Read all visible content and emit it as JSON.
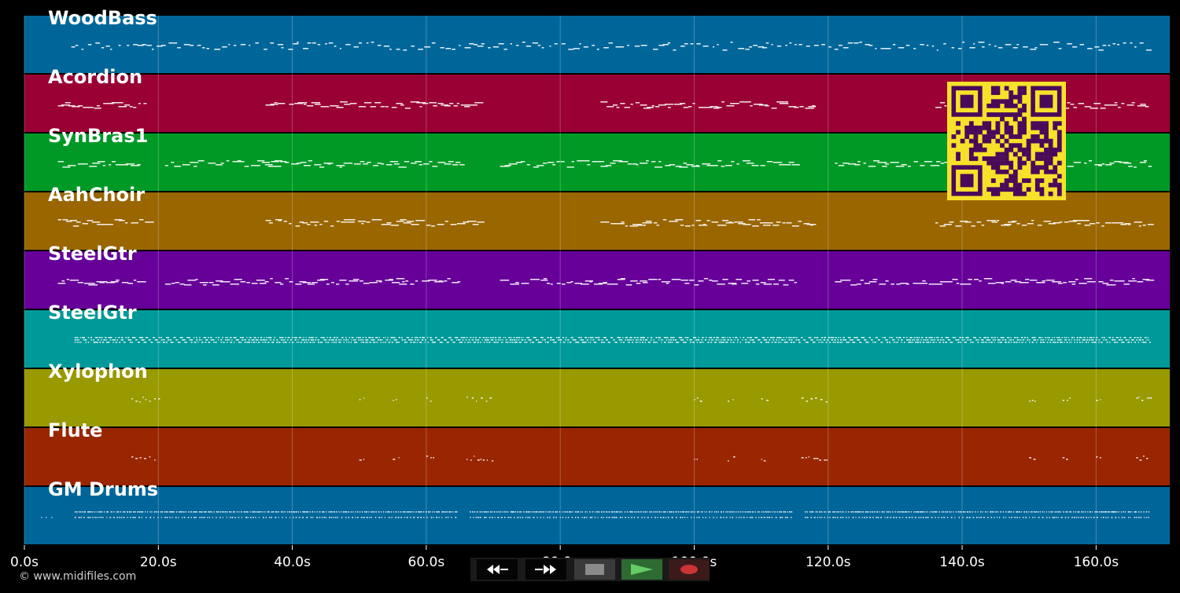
{
  "tracks": [
    {
      "name": "WoodBass",
      "color": "#006699",
      "pattern": "bass"
    },
    {
      "name": "Acordion",
      "color": "#990033",
      "pattern": "phrase"
    },
    {
      "name": "SynBras1",
      "color": "#009926",
      "pattern": "phrase-long"
    },
    {
      "name": "AahChoir",
      "color": "#996600",
      "pattern": "phrase"
    },
    {
      "name": "SteelGtr",
      "color": "#660099",
      "pattern": "phrase-long"
    },
    {
      "name": "SteelGtr",
      "color": "#009999",
      "pattern": "dense"
    },
    {
      "name": "Xylophon",
      "color": "#999900",
      "pattern": "sparse"
    },
    {
      "name": "Flute",
      "color": "#992600",
      "pattern": "sparse"
    },
    {
      "name": "GM Drums",
      "color": "#006699",
      "pattern": "drums"
    }
  ],
  "time_axis": {
    "ticks": [
      {
        "label": "0.0s",
        "value": 0
      },
      {
        "label": "20.0s",
        "value": 20
      },
      {
        "label": "40.0s",
        "value": 40
      },
      {
        "label": "60.0s",
        "value": 60
      },
      {
        "label": "80.0s",
        "value": 80
      },
      {
        "label": "100.0s",
        "value": 100
      },
      {
        "label": "120.0s",
        "value": 120
      },
      {
        "label": "140.0s",
        "value": 140
      },
      {
        "label": "160.0s",
        "value": 160
      }
    ],
    "max": 171
  },
  "footer": {
    "copyright": "© www.midifiles.com"
  },
  "controls": {
    "rewind": {
      "icon": "rewind-icon"
    },
    "fast_forward": {
      "icon": "fast-forward-icon"
    },
    "stop": {
      "icon": "stop-icon",
      "color": "#8a8a8a"
    },
    "play": {
      "icon": "play-icon",
      "color": "#4caf50"
    },
    "record": {
      "icon": "record-icon",
      "color": "#cc3333"
    }
  },
  "qr_code": {
    "foreground": "#4a0a5a",
    "background": "#f7e12a"
  }
}
